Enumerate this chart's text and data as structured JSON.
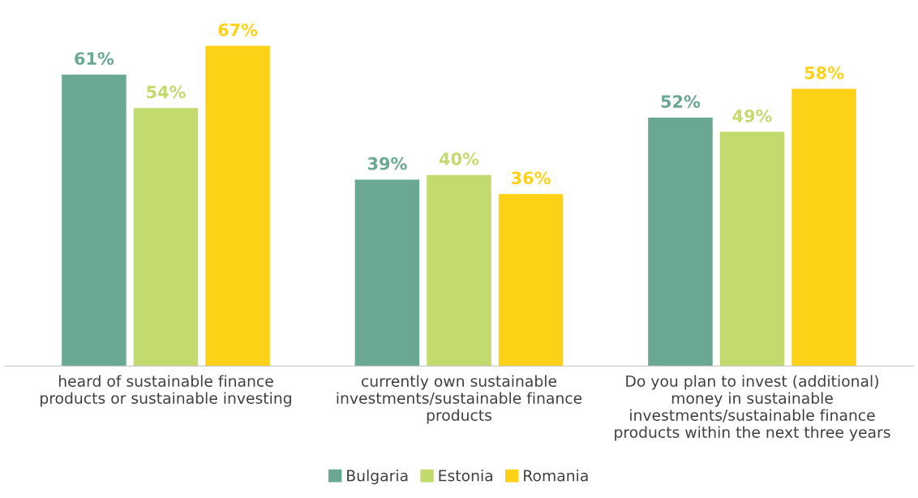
{
  "chart_data": {
    "type": "bar",
    "categories": [
      "heard of sustainable finance\nproducts or sustainable investing",
      "currently own sustainable\ninvestments/sustainable finance\nproducts",
      "Do you plan to invest (additional)\nmoney in sustainable\ninvestments/sustainable finance\nproducts within the next three years"
    ],
    "series": [
      {
        "name": "Bulgaria",
        "color": "#6aa893",
        "values": [
          61,
          39,
          52
        ],
        "value_labels": [
          "61%",
          "39%",
          "52%"
        ]
      },
      {
        "name": "Estonia",
        "color": "#c2da6e",
        "values": [
          54,
          40,
          49
        ],
        "value_labels": [
          "54%",
          "40%",
          "49%"
        ]
      },
      {
        "name": "Romania",
        "color": "#fdd216",
        "values": [
          67,
          36,
          58
        ],
        "value_labels": [
          "67%",
          "36%",
          "58%"
        ]
      }
    ],
    "legend": "bottom",
    "grid": false,
    "tick_labels": "x"
  }
}
